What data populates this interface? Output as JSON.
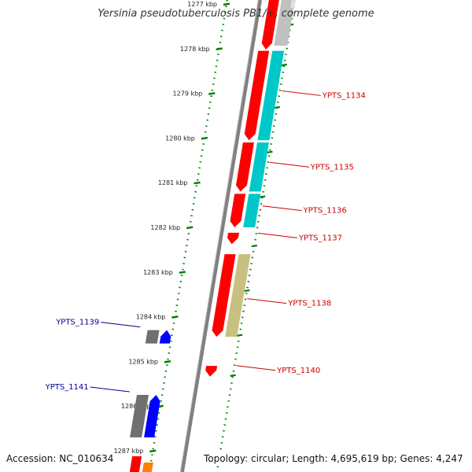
{
  "title": "Yersinia pseudotuberculosis PB1/+, complete genome",
  "footer": {
    "accession": "Accession: NC_010634",
    "summary": "Topology: circular; Length: 4,695,619 bp; Genes: 4,247"
  },
  "ticks": [
    {
      "label": "1277 kbp",
      "value": 1277
    },
    {
      "label": "1278 kbp",
      "value": 1278
    },
    {
      "label": "1279 kbp",
      "value": 1279
    },
    {
      "label": "1280 kbp",
      "value": 1280
    },
    {
      "label": "1281 kbp",
      "value": 1281
    },
    {
      "label": "1282 kbp",
      "value": 1282
    },
    {
      "label": "1283 kbp",
      "value": 1283
    },
    {
      "label": "1284 kbp",
      "value": 1284
    },
    {
      "label": "1285 kbp",
      "value": 1285
    },
    {
      "label": "1286 kbp",
      "value": 1286
    },
    {
      "label": "1287 kbp",
      "value": 1287
    }
  ],
  "genes": [
    {
      "label": "YPTS_1134",
      "strand": "forward",
      "start": 1278.05,
      "end": 1280.05,
      "color": "#ff0000",
      "cds_color": "#00c8c8"
    },
    {
      "label": "YPTS_1135",
      "strand": "forward",
      "start": 1280.1,
      "end": 1281.2,
      "color": "#ff0000",
      "cds_color": "#00c8c8"
    },
    {
      "label": "YPTS_1136",
      "strand": "forward",
      "start": 1281.25,
      "end": 1282.0,
      "color": "#ff0000",
      "cds_color": "#00c8c8"
    },
    {
      "label": "YPTS_1137",
      "strand": "forward",
      "start": 1282.12,
      "end": 1282.35,
      "color": "#ff0000",
      "cds_color": ""
    },
    {
      "label": "YPTS_1138",
      "strand": "forward",
      "start": 1282.6,
      "end": 1284.45,
      "color": "#ff0000",
      "cds_color": "#c8c080"
    },
    {
      "label": "YPTS_1139",
      "strand": "reverse",
      "start": 1284.3,
      "end": 1284.6,
      "color": "#0000ff",
      "cds_color": "#707070"
    },
    {
      "label": "YPTS_1140",
      "strand": "forward",
      "start": 1285.1,
      "end": 1285.3,
      "color": "#ff0000",
      "cds_color": ""
    },
    {
      "label": "YPTS_1141",
      "strand": "reverse",
      "start": 1285.75,
      "end": 1286.7,
      "color": "#0000ff",
      "cds_color": "#707070"
    }
  ],
  "colors": {
    "backbone": "#808080",
    "gc_dots": "#008000",
    "forward_label": "#cc0000",
    "reverse_label": "#000099"
  }
}
